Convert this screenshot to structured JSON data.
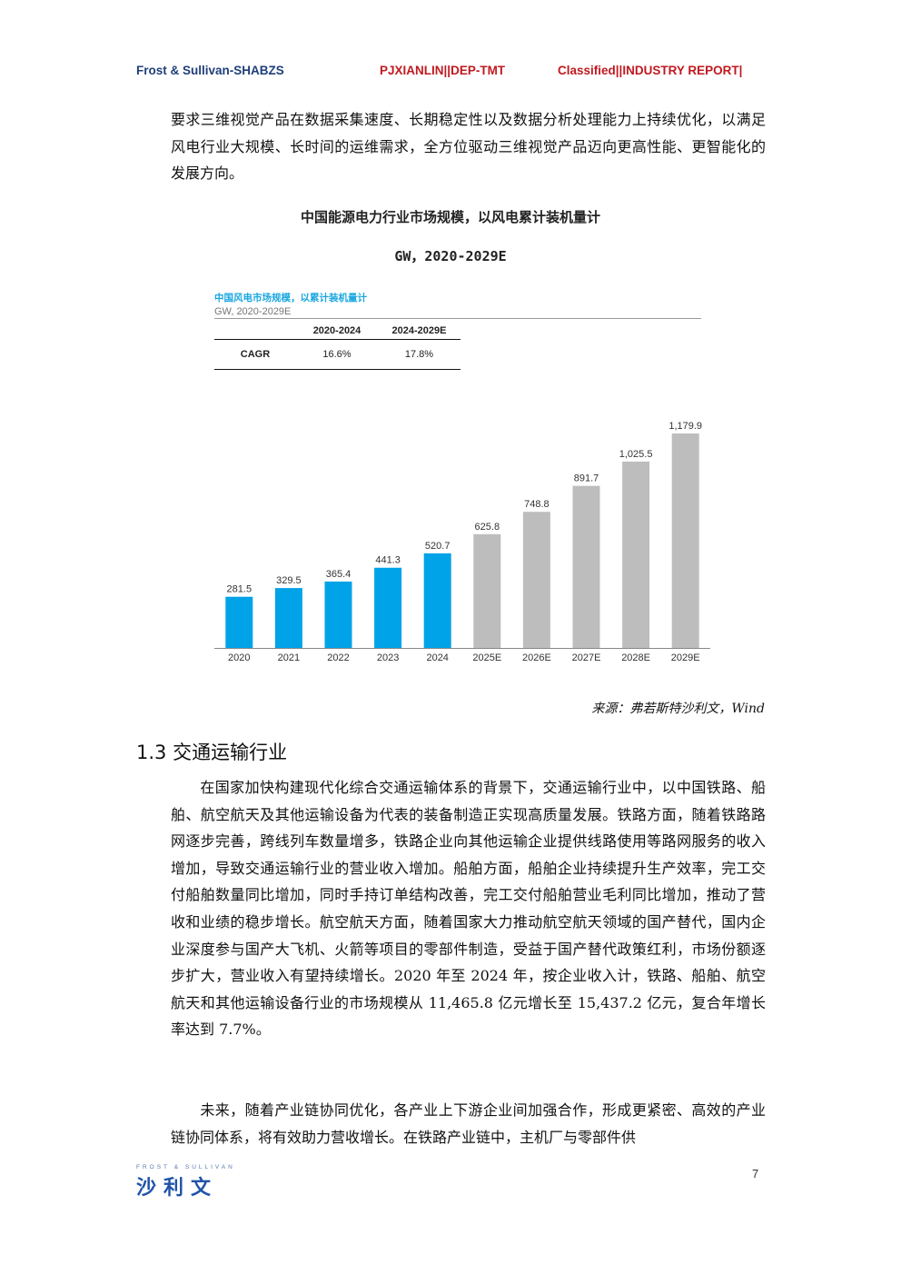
{
  "header": {
    "left": "Frost & Sullivan-SHABZS",
    "middle": "PJXIANLIN||DEP-TMT",
    "right": "Classified||INDUSTRY REPORT|"
  },
  "intro_paragraph": "要求三维视觉产品在数据采集速度、长期稳定性以及数据分析处理能力上持续优化，以满足风电行业大规模、长时间的运维需求，全方位驱动三维视觉产品迈向更高性能、更智能化的发展方向。",
  "figure": {
    "title_line1": "中国能源电力行业市场规模，以风电累计装机量计",
    "title_line2": "GW，2020-2029E"
  },
  "colors": {
    "historical": "#00a3e8",
    "forecast": "#bdbdbd",
    "inner_title": "#1aa7e0"
  },
  "chart_data": {
    "type": "bar",
    "title": "中国风电市场规模，以累计装机量计",
    "subtitle": "GW, 2020-2029E",
    "categories": [
      "2020",
      "2021",
      "2022",
      "2023",
      "2024",
      "2025E",
      "2026E",
      "2027E",
      "2028E",
      "2029E"
    ],
    "values": [
      281.5,
      329.5,
      365.4,
      441.3,
      520.7,
      625.8,
      748.8,
      891.7,
      1025.5,
      1179.9
    ],
    "value_labels": [
      "281.5",
      "329.5",
      "365.4",
      "441.3",
      "520.7",
      "625.8",
      "748.8",
      "891.7",
      "1,025.5",
      "1,179.9"
    ],
    "forecast_from_index": 5,
    "ylim": [
      0,
      1230
    ],
    "grid": false,
    "cagr_table": {
      "headers": [
        "",
        "2020-2024",
        "2024-2029E"
      ],
      "rows": [
        [
          "CAGR",
          "16.6%",
          "17.8%"
        ]
      ]
    }
  },
  "source": "来源：弗若斯特沙利文，Wind",
  "section": {
    "heading": "1.3 交通运输行业",
    "paragraph1": "在国家加快构建现代化综合交通运输体系的背景下，交通运输行业中，以中国铁路、船舶、航空航天及其他运输设备为代表的装备制造正实现高质量发展。铁路方面，随着铁路路网逐步完善，跨线列车数量增多，铁路企业向其他运输企业提供线路使用等路网服务的收入增加，导致交通运输行业的营业收入增加。船舶方面，船舶企业持续提升生产效率，完工交付船舶数量同比增加，同时手持订单结构改善，完工交付船舶营业毛利同比增加，推动了营收和业绩的稳步增长。航空航天方面，随着国家大力推动航空航天领域的国产替代，国内企业深度参与国产大飞机、火箭等项目的零部件制造，受益于国产替代政策红利，市场份额逐步扩大，营业收入有望持续增长。2020 年至 2024 年，按企业收入计，铁路、船舶、航空航天和其他运输设备行业的市场规模从 11,465.8 亿元增长至 15,437.2 亿元，复合年增长率达到 7.7%。",
    "paragraph2": "未来，随着产业链协同优化，各产业上下游企业间加强合作，形成更紧密、高效的产业链协同体系，将有效助力营收增长。在铁路产业链中，主机厂与零部件供"
  },
  "footer": {
    "page_number": "7",
    "logo_en": "FROST & SULLIVAN",
    "logo_cn": "沙利文"
  }
}
